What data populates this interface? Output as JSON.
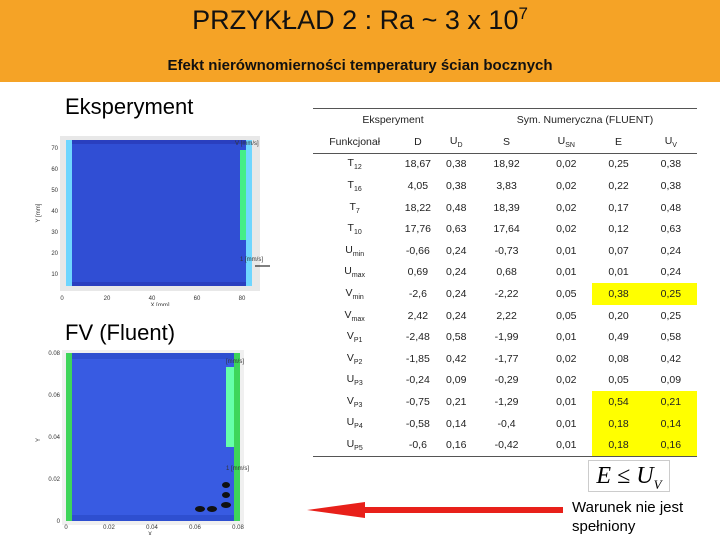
{
  "header": {
    "title": {
      "text": "PRZYKŁAD 2 : Ra ~ 3 x 10",
      "sup": "7"
    },
    "subtitle": "Efekt nierównomierności temperatury ścian bocznych"
  },
  "left": {
    "experiment_label": "Eksperyment",
    "fluent_label": "FV (Fluent)",
    "top_plot": {
      "ylabel": "Y [mm]",
      "xlabel": "X [mm]",
      "yticks": [
        "70",
        "60",
        "50",
        "40",
        "30",
        "20",
        "10"
      ],
      "xticks": [
        "0",
        "20",
        "40",
        "60",
        "80"
      ],
      "legend_title": "V [mm/s]",
      "vector_label": "1 [mm/s]"
    },
    "bottom_plot": {
      "ylabel": "Y",
      "xlabel": "X",
      "yticks": [
        "0.08",
        "0.06",
        "0.04",
        "0.02",
        "0"
      ],
      "xticks": [
        "0",
        "0.02",
        "0.04",
        "0.06",
        "0.08"
      ],
      "legend_title": "[mm/s]",
      "vector_label": "1 [mm/s]"
    }
  },
  "table": {
    "group_headers": [
      "Eksperyment",
      "Sym. Numeryczna (FLUENT)"
    ],
    "columns": [
      {
        "base": "Funkcjonał",
        "sub": ""
      },
      {
        "base": "D",
        "sub": ""
      },
      {
        "base": "U",
        "sub": "D"
      },
      {
        "base": "S",
        "sub": ""
      },
      {
        "base": "U",
        "sub": "SN"
      },
      {
        "base": "E",
        "sub": ""
      },
      {
        "base": "U",
        "sub": "V"
      }
    ],
    "rows": [
      {
        "name": {
          "base": "T",
          "sub": "12"
        },
        "cells": [
          "18,67",
          "0,38",
          "18,92",
          "0,02",
          "0,25",
          "0,38"
        ]
      },
      {
        "name": {
          "base": "T",
          "sub": "16"
        },
        "cells": [
          "4,05",
          "0,38",
          "3,83",
          "0,02",
          "0,22",
          "0,38"
        ]
      },
      {
        "name": {
          "base": "T",
          "sub": "7"
        },
        "cells": [
          "18,22",
          "0,48",
          "18,39",
          "0,02",
          "0,17",
          "0,48"
        ]
      },
      {
        "name": {
          "base": "T",
          "sub": "10"
        },
        "cells": [
          "17,76",
          "0,63",
          "17,64",
          "0,02",
          "0,12",
          "0,63"
        ]
      },
      {
        "name": {
          "base": "U",
          "sub": "min"
        },
        "cells": [
          "-0,66",
          "0,24",
          "-0,73",
          "0,01",
          "0,07",
          "0,24"
        ]
      },
      {
        "name": {
          "base": "U",
          "sub": "max"
        },
        "cells": [
          "0,69",
          "0,24",
          "0,68",
          "0,01",
          "0,01",
          "0,24"
        ]
      },
      {
        "name": {
          "base": "V",
          "sub": "min"
        },
        "cells": [
          "-2,6",
          "0,24",
          "-2,22",
          "0,05",
          "0,38",
          "0,25"
        ]
      },
      {
        "name": {
          "base": "V",
          "sub": "max"
        },
        "cells": [
          "2,42",
          "0,24",
          "2,22",
          "0,05",
          "0,20",
          "0,25"
        ]
      },
      {
        "name": {
          "base": "V",
          "sub": "P1"
        },
        "cells": [
          "-2,48",
          "0,58",
          "-1,99",
          "0,01",
          "0,49",
          "0,58"
        ]
      },
      {
        "name": {
          "base": "V",
          "sub": "P2"
        },
        "cells": [
          "-1,85",
          "0,42",
          "-1,77",
          "0,02",
          "0,08",
          "0,42"
        ]
      },
      {
        "name": {
          "base": "U",
          "sub": "P3"
        },
        "cells": [
          "-0,24",
          "0,09",
          "-0,29",
          "0,02",
          "0,05",
          "0,09"
        ]
      },
      {
        "name": {
          "base": "V",
          "sub": "P3"
        },
        "cells": [
          "-0,75",
          "0,21",
          "-1,29",
          "0,01",
          "0,54",
          "0,21"
        ]
      },
      {
        "name": {
          "base": "U",
          "sub": "P4"
        },
        "cells": [
          "-0,58",
          "0,14",
          "-0,4",
          "0,01",
          "0,18",
          "0,14"
        ]
      },
      {
        "name": {
          "base": "U",
          "sub": "P5"
        },
        "cells": [
          "-0,6",
          "0,16",
          "-0,42",
          "0,01",
          "0,18",
          "0,16"
        ]
      }
    ]
  },
  "formula": {
    "lhs": "E",
    "op": "≤",
    "rhs": "U",
    "rhs_sub": "V"
  },
  "condition": "Warunek nie jest spełniony"
}
